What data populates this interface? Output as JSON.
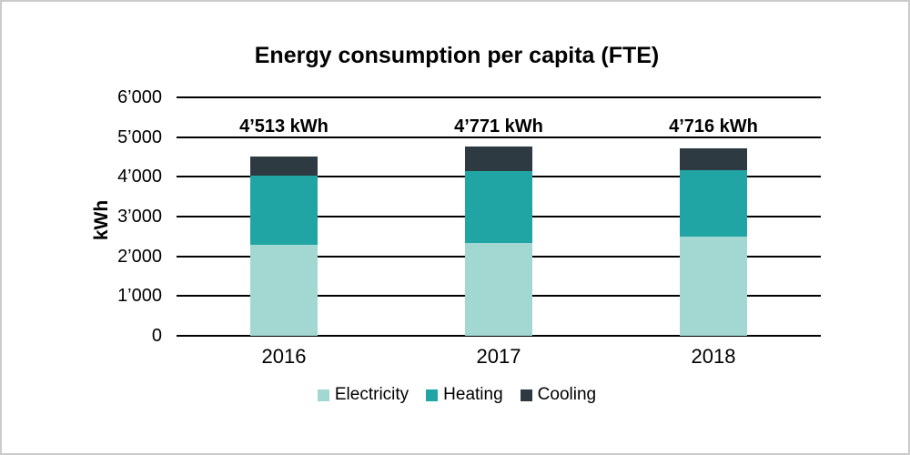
{
  "chart_data": {
    "type": "bar",
    "stacked": true,
    "title": "Energy consumption per capita (FTE)",
    "ylabel": "kWh",
    "xlabel": "",
    "categories": [
      "2016",
      "2017",
      "2018"
    ],
    "series": [
      {
        "name": "Electricity",
        "color": "#a3d8d2",
        "values": [
          2280,
          2340,
          2490
        ]
      },
      {
        "name": "Heating",
        "color": "#21a4a4",
        "values": [
          1753,
          1810,
          1666
        ]
      },
      {
        "name": "Cooling",
        "color": "#2d3a41",
        "values": [
          480,
          621,
          560
        ]
      }
    ],
    "totals_kwh": [
      4513,
      4771,
      4716
    ],
    "total_labels": [
      "4’513 kWh",
      "4’771 kWh",
      "4’716 kWh"
    ],
    "yticks": [
      {
        "value": 0,
        "label": "0"
      },
      {
        "value": 1000,
        "label": "1’000"
      },
      {
        "value": 2000,
        "label": "2’000"
      },
      {
        "value": 3000,
        "label": "3’000"
      },
      {
        "value": 4000,
        "label": "4’000"
      },
      {
        "value": 5000,
        "label": "5’000"
      },
      {
        "value": 6000,
        "label": "6’000"
      }
    ],
    "ylim": [
      0,
      6000
    ],
    "grid": "horizontal-only",
    "legend_position": "bottom",
    "text_color": "#000000",
    "gridline_color": "#000000",
    "background_color": "#ffffff",
    "frame_border_color": "#cbcbcb"
  }
}
